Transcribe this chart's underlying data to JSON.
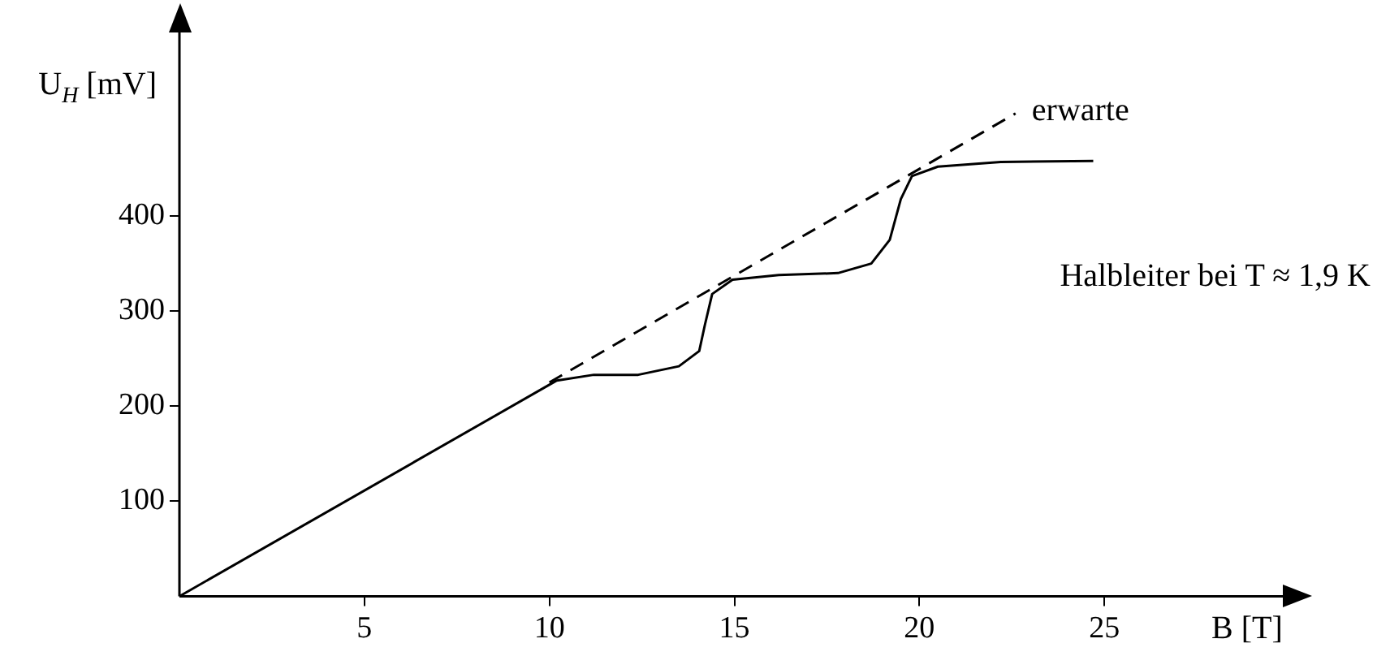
{
  "chart_data": {
    "type": "line",
    "xlabel": "B [T]",
    "ylabel": "U$_{H}$ [mV]",
    "xlim": [
      0,
      30
    ],
    "ylim": [
      0,
      600
    ],
    "xticks": [
      5,
      10,
      15,
      20,
      25
    ],
    "yticks": [
      100,
      200,
      300,
      400
    ],
    "grid": false,
    "legend": false,
    "marker": "none",
    "series": [
      {
        "color": "#000000",
        "line_style": "solid",
        "x": [
          0,
          10.2,
          11.2,
          12.4,
          13.5,
          14.05,
          14.2,
          14.4,
          14.95,
          16.2,
          17.8,
          18.7,
          19.2,
          19.5,
          19.8,
          20.5,
          22.2,
          24.7
        ],
        "values": [
          0,
          227,
          233,
          233,
          242,
          258,
          285,
          318,
          333,
          338,
          340,
          350,
          375,
          418,
          442,
          452,
          457,
          458
        ]
      },
      {
        "name": "erwarte",
        "color": "#000000",
        "line_style": "dashed",
        "x": [
          10,
          22.6
        ],
        "values": [
          225,
          508
        ]
      }
    ],
    "annotations": [
      "Halbleiter bei T ≈ 1,9 K"
    ]
  }
}
